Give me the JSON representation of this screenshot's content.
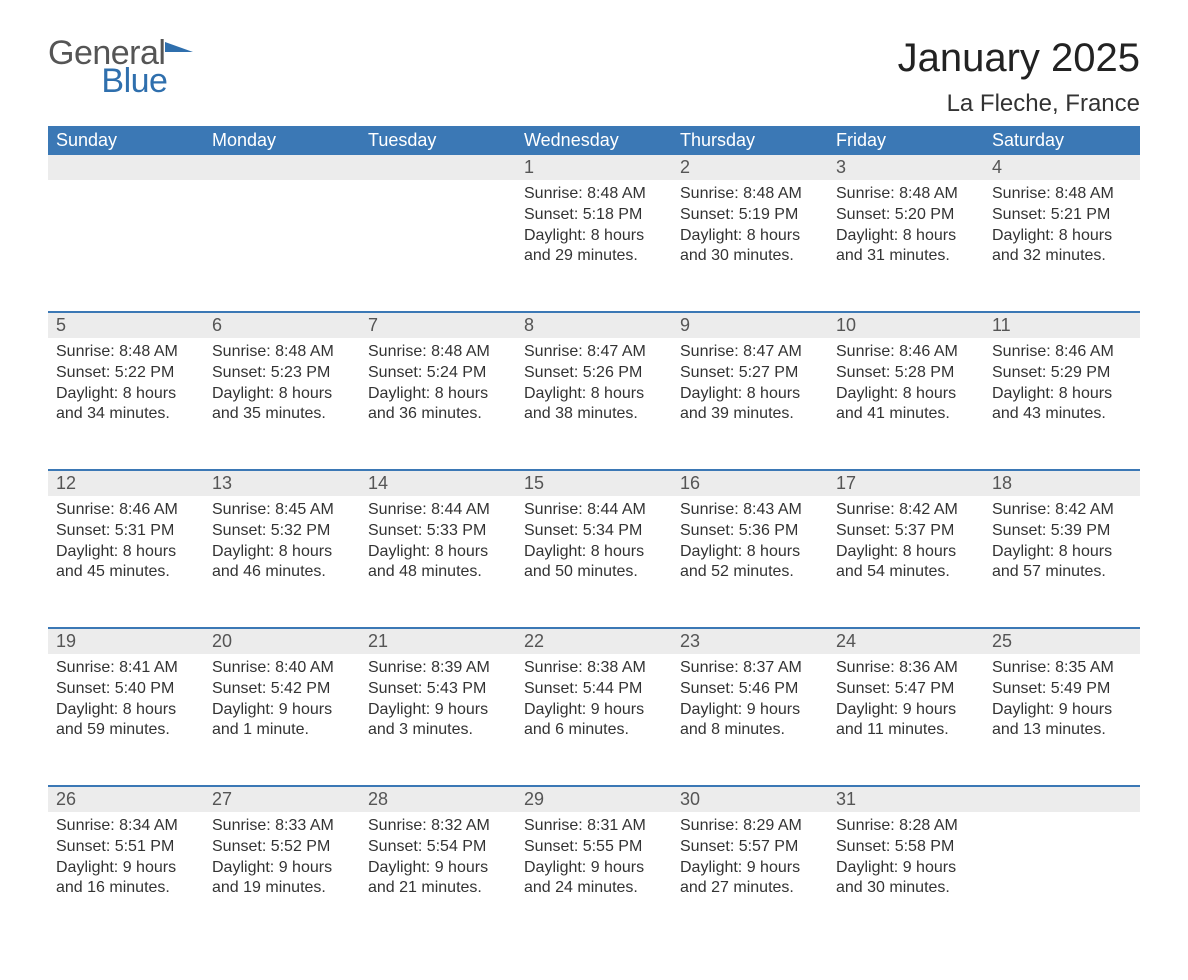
{
  "logo": {
    "word1": "General",
    "word2": "Blue"
  },
  "title": "January 2025",
  "location": "La Fleche, France",
  "colors": {
    "header_bg": "#3b78b5",
    "header_text": "#ffffff",
    "daynum_bg": "#ececec",
    "row_border": "#3b78b5",
    "body_text": "#333333",
    "logo_gray": "#555555",
    "logo_blue": "#2f6fad",
    "page_bg": "#ffffff"
  },
  "day_names": [
    "Sunday",
    "Monday",
    "Tuesday",
    "Wednesday",
    "Thursday",
    "Friday",
    "Saturday"
  ],
  "labels": {
    "sunrise": "Sunrise:",
    "sunset": "Sunset:",
    "daylight": "Daylight:"
  },
  "weeks": [
    [
      null,
      null,
      null,
      {
        "n": "1",
        "sunrise": "8:48 AM",
        "sunset": "5:18 PM",
        "daylight": "8 hours and 29 minutes."
      },
      {
        "n": "2",
        "sunrise": "8:48 AM",
        "sunset": "5:19 PM",
        "daylight": "8 hours and 30 minutes."
      },
      {
        "n": "3",
        "sunrise": "8:48 AM",
        "sunset": "5:20 PM",
        "daylight": "8 hours and 31 minutes."
      },
      {
        "n": "4",
        "sunrise": "8:48 AM",
        "sunset": "5:21 PM",
        "daylight": "8 hours and 32 minutes."
      }
    ],
    [
      {
        "n": "5",
        "sunrise": "8:48 AM",
        "sunset": "5:22 PM",
        "daylight": "8 hours and 34 minutes."
      },
      {
        "n": "6",
        "sunrise": "8:48 AM",
        "sunset": "5:23 PM",
        "daylight": "8 hours and 35 minutes."
      },
      {
        "n": "7",
        "sunrise": "8:48 AM",
        "sunset": "5:24 PM",
        "daylight": "8 hours and 36 minutes."
      },
      {
        "n": "8",
        "sunrise": "8:47 AM",
        "sunset": "5:26 PM",
        "daylight": "8 hours and 38 minutes."
      },
      {
        "n": "9",
        "sunrise": "8:47 AM",
        "sunset": "5:27 PM",
        "daylight": "8 hours and 39 minutes."
      },
      {
        "n": "10",
        "sunrise": "8:46 AM",
        "sunset": "5:28 PM",
        "daylight": "8 hours and 41 minutes."
      },
      {
        "n": "11",
        "sunrise": "8:46 AM",
        "sunset": "5:29 PM",
        "daylight": "8 hours and 43 minutes."
      }
    ],
    [
      {
        "n": "12",
        "sunrise": "8:46 AM",
        "sunset": "5:31 PM",
        "daylight": "8 hours and 45 minutes."
      },
      {
        "n": "13",
        "sunrise": "8:45 AM",
        "sunset": "5:32 PM",
        "daylight": "8 hours and 46 minutes."
      },
      {
        "n": "14",
        "sunrise": "8:44 AM",
        "sunset": "5:33 PM",
        "daylight": "8 hours and 48 minutes."
      },
      {
        "n": "15",
        "sunrise": "8:44 AM",
        "sunset": "5:34 PM",
        "daylight": "8 hours and 50 minutes."
      },
      {
        "n": "16",
        "sunrise": "8:43 AM",
        "sunset": "5:36 PM",
        "daylight": "8 hours and 52 minutes."
      },
      {
        "n": "17",
        "sunrise": "8:42 AM",
        "sunset": "5:37 PM",
        "daylight": "8 hours and 54 minutes."
      },
      {
        "n": "18",
        "sunrise": "8:42 AM",
        "sunset": "5:39 PM",
        "daylight": "8 hours and 57 minutes."
      }
    ],
    [
      {
        "n": "19",
        "sunrise": "8:41 AM",
        "sunset": "5:40 PM",
        "daylight": "8 hours and 59 minutes."
      },
      {
        "n": "20",
        "sunrise": "8:40 AM",
        "sunset": "5:42 PM",
        "daylight": "9 hours and 1 minute."
      },
      {
        "n": "21",
        "sunrise": "8:39 AM",
        "sunset": "5:43 PM",
        "daylight": "9 hours and 3 minutes."
      },
      {
        "n": "22",
        "sunrise": "8:38 AM",
        "sunset": "5:44 PM",
        "daylight": "9 hours and 6 minutes."
      },
      {
        "n": "23",
        "sunrise": "8:37 AM",
        "sunset": "5:46 PM",
        "daylight": "9 hours and 8 minutes."
      },
      {
        "n": "24",
        "sunrise": "8:36 AM",
        "sunset": "5:47 PM",
        "daylight": "9 hours and 11 minutes."
      },
      {
        "n": "25",
        "sunrise": "8:35 AM",
        "sunset": "5:49 PM",
        "daylight": "9 hours and 13 minutes."
      }
    ],
    [
      {
        "n": "26",
        "sunrise": "8:34 AM",
        "sunset": "5:51 PM",
        "daylight": "9 hours and 16 minutes."
      },
      {
        "n": "27",
        "sunrise": "8:33 AM",
        "sunset": "5:52 PM",
        "daylight": "9 hours and 19 minutes."
      },
      {
        "n": "28",
        "sunrise": "8:32 AM",
        "sunset": "5:54 PM",
        "daylight": "9 hours and 21 minutes."
      },
      {
        "n": "29",
        "sunrise": "8:31 AM",
        "sunset": "5:55 PM",
        "daylight": "9 hours and 24 minutes."
      },
      {
        "n": "30",
        "sunrise": "8:29 AM",
        "sunset": "5:57 PM",
        "daylight": "9 hours and 27 minutes."
      },
      {
        "n": "31",
        "sunrise": "8:28 AM",
        "sunset": "5:58 PM",
        "daylight": "9 hours and 30 minutes."
      },
      null
    ]
  ]
}
